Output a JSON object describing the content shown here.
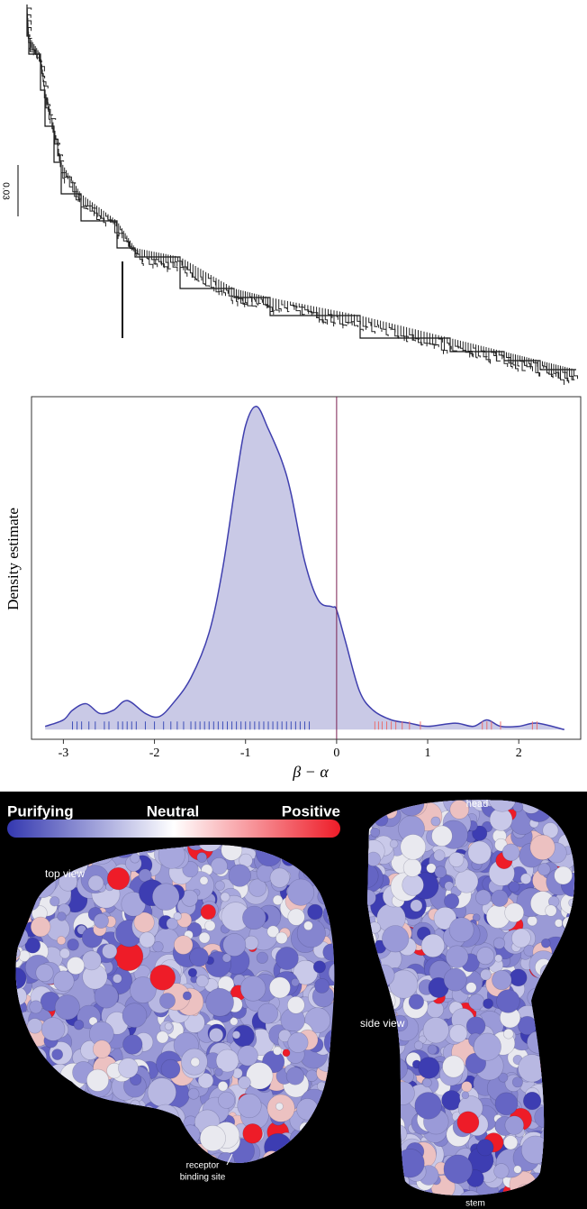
{
  "chart_data": [
    {
      "type": "tree",
      "scale_label": "0.03"
    },
    {
      "type": "density",
      "ylabel": "Density estimate",
      "xlabel": "β − α",
      "x": [
        -3.2,
        -3.0,
        -2.9,
        -2.75,
        -2.6,
        -2.45,
        -2.3,
        -2.1,
        -1.95,
        -1.8,
        -1.6,
        -1.4,
        -1.25,
        -1.1,
        -1.0,
        -0.88,
        -0.75,
        -0.6,
        -0.5,
        -0.35,
        -0.2,
        -0.05,
        0.0,
        0.1,
        0.25,
        0.4,
        0.6,
        0.8,
        1.0,
        1.3,
        1.5,
        1.65,
        1.8,
        2.0,
        2.2,
        2.5
      ],
      "values": [
        0.01,
        0.03,
        0.06,
        0.08,
        0.05,
        0.06,
        0.09,
        0.05,
        0.04,
        0.08,
        0.16,
        0.3,
        0.5,
        0.78,
        0.94,
        1.0,
        0.93,
        0.83,
        0.73,
        0.52,
        0.4,
        0.38,
        0.37,
        0.27,
        0.12,
        0.06,
        0.03,
        0.02,
        0.01,
        0.02,
        0.01,
        0.03,
        0.01,
        0.01,
        0.02,
        0.0
      ],
      "color": "#3f3fae",
      "fill": "#c9c9e6",
      "xlim": [
        -3.35,
        2.68
      ],
      "ylim": [
        -0.03,
        1.03
      ],
      "xticks": [
        -3,
        -2,
        -1,
        0,
        1,
        2
      ],
      "vline": 0,
      "vline_color": "#7a2050",
      "rug": [
        {
          "color": "#3e4fb8",
          "x": [
            -2.9,
            -2.85,
            -2.8,
            -2.72,
            -2.65,
            -2.55,
            -2.5,
            -2.4,
            -2.35,
            -2.3,
            -2.25,
            -2.2,
            -2.1,
            -2.0,
            -1.9,
            -1.82,
            -1.75,
            -1.68,
            -1.6,
            -1.55,
            -1.5,
            -1.45,
            -1.4,
            -1.35,
            -1.3,
            -1.25,
            -1.2,
            -1.15,
            -1.1,
            -1.05,
            -1.0,
            -0.95,
            -0.9,
            -0.85,
            -0.8,
            -0.75,
            -0.7,
            -0.65,
            -0.6,
            -0.55,
            -0.5,
            -0.45,
            -0.4,
            -0.35,
            -0.3
          ]
        },
        {
          "color": "#e87070",
          "x": [
            0.42,
            0.46,
            0.5,
            0.55,
            0.6,
            0.65,
            0.72,
            0.8,
            0.92,
            1.6,
            1.65,
            1.7,
            1.8,
            2.15,
            2.2
          ]
        }
      ]
    },
    {
      "type": "structure",
      "colorbar_labels": [
        "Purifying",
        "Neutral",
        "Positive"
      ],
      "colorbar_colors": [
        "#3438b0",
        "#ffffff",
        "#ee1c28"
      ],
      "top_view_label": "top view",
      "side_view_label": "side view",
      "head_label": "head",
      "stem_label": "stem",
      "receptor_label": [
        "receptor",
        "binding site"
      ]
    }
  ]
}
